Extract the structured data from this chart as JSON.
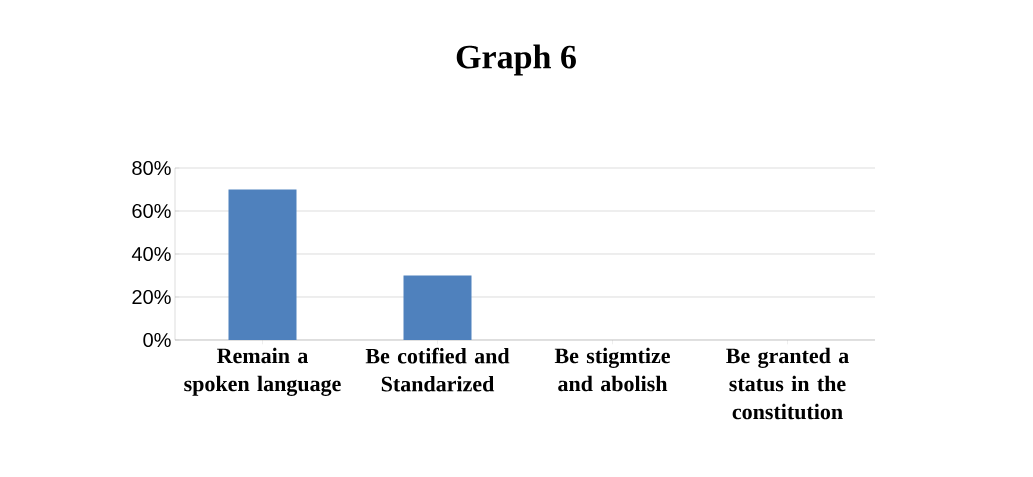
{
  "chart_data": {
    "type": "bar",
    "title": "Graph 6",
    "categories": [
      "Remain a spoken language",
      "Be cotified and Standarized",
      "Be stigmtize and abolish",
      "Be granted a status in the constitution"
    ],
    "values": [
      70,
      30,
      0,
      0
    ],
    "color": "#4f81bd",
    "ylim": [
      0,
      80
    ],
    "yticks": [
      {
        "value": 0,
        "label": "0%"
      },
      {
        "value": 20,
        "label": "20%"
      },
      {
        "value": 40,
        "label": "40%"
      },
      {
        "value": 60,
        "label": "60%"
      },
      {
        "value": 80,
        "label": "80%"
      }
    ],
    "grid": "y"
  }
}
